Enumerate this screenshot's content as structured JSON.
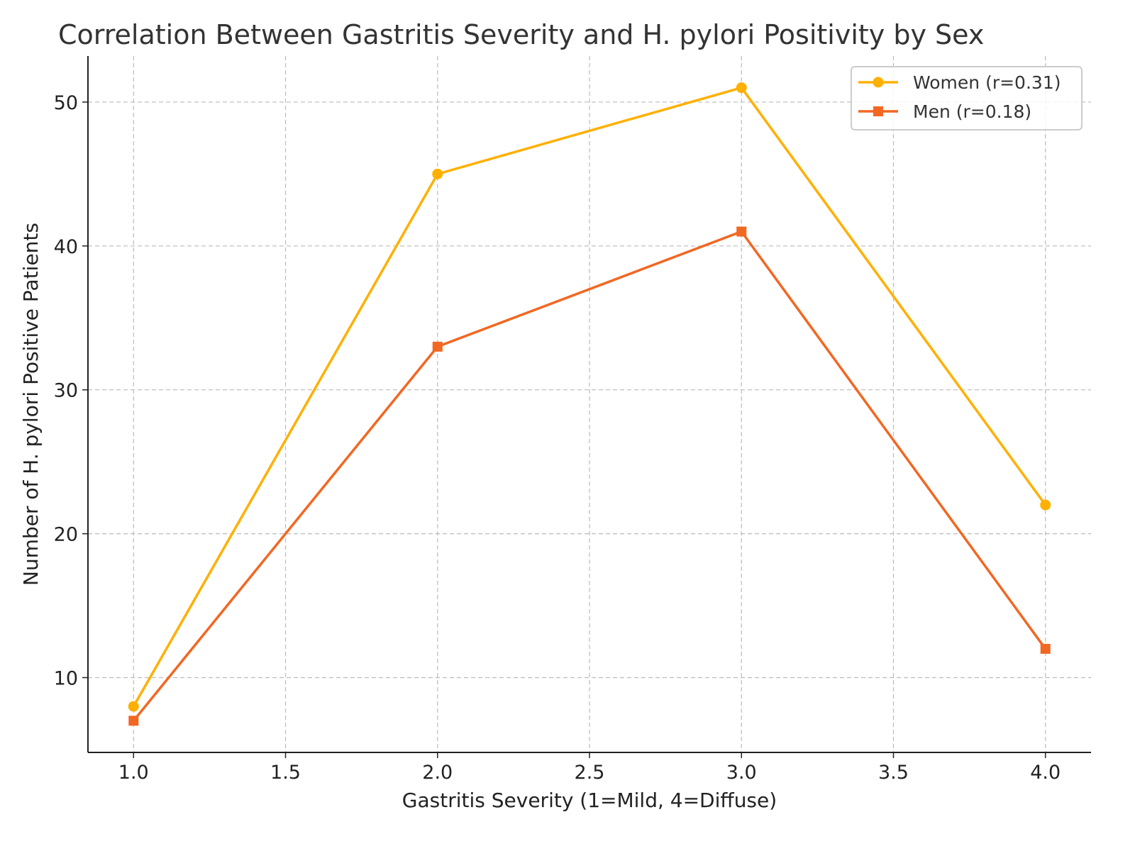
{
  "chart_data": {
    "type": "line",
    "title": "Correlation Between Gastritis Severity and H. pylori Positivity by Sex",
    "xlabel": "Gastritis Severity (1=Mild, 4=Diffuse)",
    "ylabel": "Number of H. pylori Positive Patients",
    "x": [
      1,
      2,
      3,
      4
    ],
    "xlim": [
      0.85,
      4.15
    ],
    "ylim": [
      4.8,
      53.2
    ],
    "xticks": [
      "1.0",
      "1.5",
      "2.0",
      "2.5",
      "3.0",
      "3.5",
      "4.0"
    ],
    "yticks": [
      "10",
      "20",
      "30",
      "40",
      "50"
    ],
    "grid": true,
    "legend_position": "top-right",
    "series": [
      {
        "name": "Women (r=0.31)",
        "values": [
          8,
          45,
          51,
          22
        ],
        "color": "#FFB000",
        "marker": "circle"
      },
      {
        "name": "Men (r=0.18)",
        "values": [
          7,
          33,
          41,
          12
        ],
        "color": "#F26722",
        "marker": "square"
      }
    ]
  }
}
